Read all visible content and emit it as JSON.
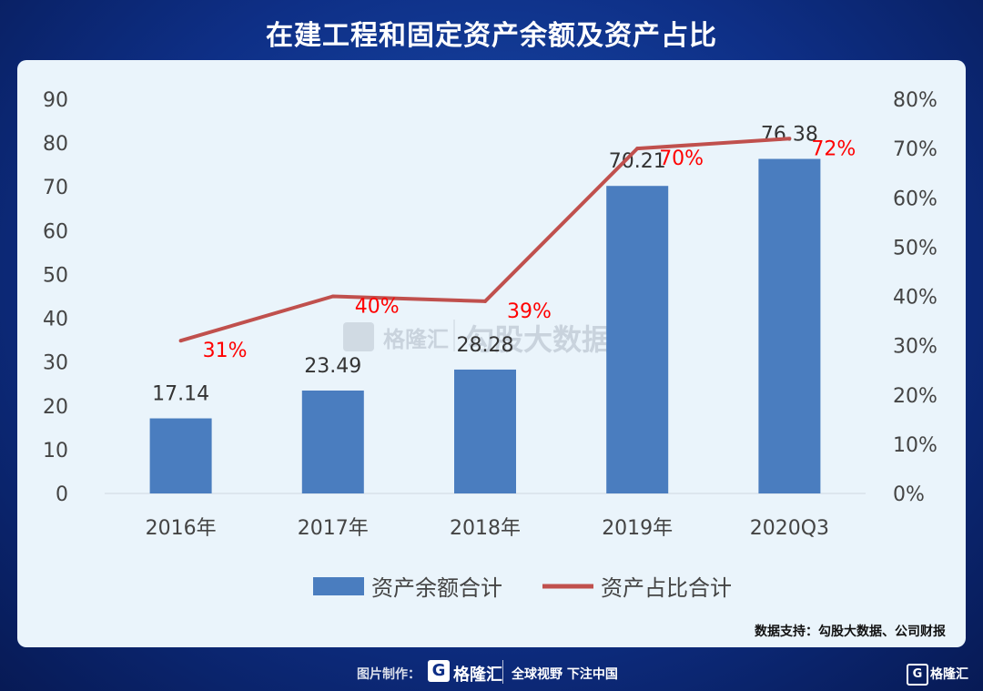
{
  "header": {
    "title": "在建工程和固定资产余额及资产占比"
  },
  "source": "数据支持：勾股大数据、公司财报",
  "watermark": {
    "brand": "格隆汇",
    "text": "勾股大数据"
  },
  "footer": {
    "made_by": "图片制作：",
    "brand": "格隆汇",
    "slogan": "全球视野 下注中国",
    "corner_brand": "格隆汇"
  },
  "colors": {
    "bar": "#4a7dbf",
    "line": "#c0504d",
    "pct_label": "#ff0000"
  },
  "chart_data": {
    "type": "bar",
    "categories": [
      "2016年",
      "2017年",
      "2018年",
      "2019年",
      "2020Q3"
    ],
    "series": [
      {
        "name": "资产余额合计",
        "type": "bar",
        "axis": "left",
        "values": [
          17.14,
          23.49,
          28.28,
          70.21,
          76.38
        ],
        "labels": [
          "17.14",
          "23.49",
          "28.28",
          "70.21",
          "76.38"
        ]
      },
      {
        "name": "资产占比合计",
        "type": "line",
        "axis": "right",
        "values": [
          31,
          40,
          39,
          70,
          72
        ],
        "labels": [
          "31%",
          "40%",
          "39%",
          "70%",
          "72%"
        ]
      }
    ],
    "y_left": {
      "min": 0,
      "max": 90,
      "ticks": [
        "0",
        "10",
        "20",
        "30",
        "40",
        "50",
        "60",
        "70",
        "80",
        "90"
      ]
    },
    "y_right": {
      "min": 0,
      "max": 80,
      "ticks": [
        "0%",
        "10%",
        "20%",
        "30%",
        "40%",
        "50%",
        "60%",
        "70%",
        "80%"
      ]
    },
    "legend": "bottom",
    "grid": false
  }
}
